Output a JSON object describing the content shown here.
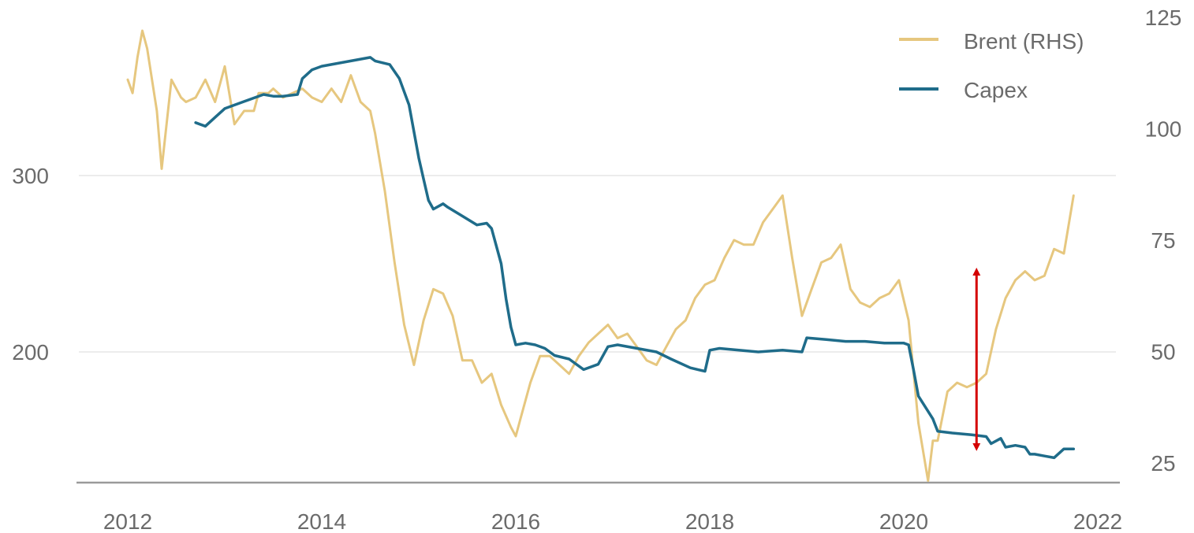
{
  "chart_data": {
    "type": "line",
    "title": "",
    "xlabel": "",
    "ylabel": "",
    "x_ticks": [
      "2012",
      "2014",
      "2016",
      "2018",
      "2020",
      "2022"
    ],
    "xlim": [
      2012,
      2022
    ],
    "y_left": {
      "ticks": [
        "300",
        "200"
      ],
      "lim": [
        126,
        374
      ]
    },
    "y_right": {
      "ticks": [
        "125",
        "100",
        "75",
        "50",
        "25"
      ],
      "lim": [
        20,
        125
      ]
    },
    "grid": "horizontal",
    "legend_position": "top-right",
    "colors": {
      "brent": "#e6c77f",
      "capex": "#1f6c8a",
      "arrow": "#d40000",
      "axis": "#9a9a9a",
      "grid": "#e6e6e6"
    },
    "series": [
      {
        "name": "Brent (RHS)",
        "axis": "right",
        "x": [
          2012.0,
          2012.05,
          2012.1,
          2012.15,
          2012.2,
          2012.3,
          2012.35,
          2012.45,
          2012.55,
          2012.6,
          2012.7,
          2012.8,
          2012.9,
          2012.95,
          2013.0,
          2013.1,
          2013.2,
          2013.3,
          2013.35,
          2013.45,
          2013.5,
          2013.6,
          2013.7,
          2013.8,
          2013.9,
          2014.0,
          2014.1,
          2014.2,
          2014.3,
          2014.4,
          2014.5,
          2014.55,
          2014.65,
          2014.75,
          2014.85,
          2014.95,
          2015.05,
          2015.15,
          2015.25,
          2015.35,
          2015.45,
          2015.55,
          2015.65,
          2015.75,
          2015.85,
          2015.95,
          2016.0,
          2016.05,
          2016.15,
          2016.25,
          2016.35,
          2016.45,
          2016.55,
          2016.65,
          2016.75,
          2016.85,
          2016.95,
          2017.05,
          2017.15,
          2017.25,
          2017.35,
          2017.45,
          2017.55,
          2017.65,
          2017.75,
          2017.85,
          2017.95,
          2018.05,
          2018.15,
          2018.25,
          2018.35,
          2018.45,
          2018.55,
          2018.65,
          2018.75,
          2018.85,
          2018.95,
          2019.05,
          2019.15,
          2019.25,
          2019.35,
          2019.45,
          2019.55,
          2019.65,
          2019.75,
          2019.85,
          2019.95,
          2020.05,
          2020.15,
          2020.25,
          2020.3,
          2020.35,
          2020.45,
          2020.55,
          2020.65,
          2020.75,
          2020.85,
          2020.95,
          2021.05,
          2021.15,
          2021.25,
          2021.35,
          2021.45,
          2021.55,
          2021.65,
          2021.75
        ],
        "values": [
          111,
          108,
          116,
          122,
          118,
          104,
          91,
          111,
          107,
          106,
          107,
          111,
          106,
          110,
          114,
          101,
          104,
          104,
          108,
          108,
          109,
          107,
          108,
          109,
          107,
          106,
          109,
          106,
          112,
          106,
          104,
          99,
          86,
          70,
          56,
          47,
          57,
          64,
          63,
          58,
          48,
          48,
          43,
          45,
          38,
          33,
          31,
          35,
          43,
          49,
          49,
          47,
          45,
          49,
          52,
          54,
          56,
          53,
          54,
          51,
          48,
          47,
          51,
          55,
          57,
          62,
          65,
          66,
          71,
          75,
          74,
          74,
          79,
          82,
          85,
          71,
          58,
          64,
          70,
          71,
          74,
          64,
          61,
          60,
          62,
          63,
          66,
          57,
          34,
          21,
          30,
          30,
          41,
          43,
          42,
          43,
          45,
          55,
          62,
          66,
          68,
          66,
          67,
          73,
          72,
          85
        ]
      },
      {
        "name": "Capex",
        "axis": "left",
        "x": [
          2012.7,
          2012.8,
          2012.9,
          2013.0,
          2013.2,
          2013.4,
          2013.5,
          2013.6,
          2013.75,
          2013.8,
          2013.9,
          2014.0,
          2014.2,
          2014.3,
          2014.5,
          2014.55,
          2014.7,
          2014.8,
          2014.9,
          2015.0,
          2015.05,
          2015.1,
          2015.15,
          2015.25,
          2015.3,
          2015.45,
          2015.6,
          2015.7,
          2015.75,
          2015.85,
          2015.9,
          2015.95,
          2016.0,
          2016.1,
          2016.2,
          2016.3,
          2016.4,
          2016.55,
          2016.7,
          2016.85,
          2016.95,
          2017.05,
          2017.25,
          2017.45,
          2017.6,
          2017.8,
          2017.95,
          2018.0,
          2018.1,
          2018.3,
          2018.5,
          2018.75,
          2018.95,
          2019.0,
          2019.2,
          2019.4,
          2019.6,
          2019.8,
          2020.0,
          2020.05,
          2020.1,
          2020.15,
          2020.3,
          2020.35,
          2020.5,
          2020.7,
          2020.85,
          2020.9,
          2021.0,
          2021.05,
          2021.15,
          2021.25,
          2021.3,
          2021.35,
          2021.45,
          2021.55,
          2021.65,
          2021.75
        ],
        "values": [
          330,
          328,
          333,
          338,
          342,
          346,
          345,
          345,
          346,
          355,
          360,
          362,
          364,
          365,
          367,
          365,
          363,
          355,
          340,
          310,
          298,
          286,
          281,
          284,
          282,
          277,
          272,
          273,
          270,
          250,
          230,
          214,
          204,
          205,
          204,
          202,
          198,
          196,
          190,
          193,
          203,
          204,
          202,
          200,
          196,
          191,
          189,
          201,
          202,
          201,
          200,
          201,
          200,
          208,
          207,
          206,
          206,
          205,
          205,
          204,
          190,
          175,
          162,
          155,
          154,
          153,
          152,
          148,
          151,
          146,
          147,
          146,
          142,
          142,
          141,
          140,
          145,
          145
        ]
      }
    ],
    "annotations": [
      {
        "type": "double-arrow",
        "x": 2020.75,
        "y_from_right": 27.5,
        "y_to_right": 69
      }
    ]
  },
  "legend": {
    "items": [
      {
        "label": "Brent (RHS)",
        "series": "brent"
      },
      {
        "label": "Capex",
        "series": "capex"
      }
    ]
  }
}
